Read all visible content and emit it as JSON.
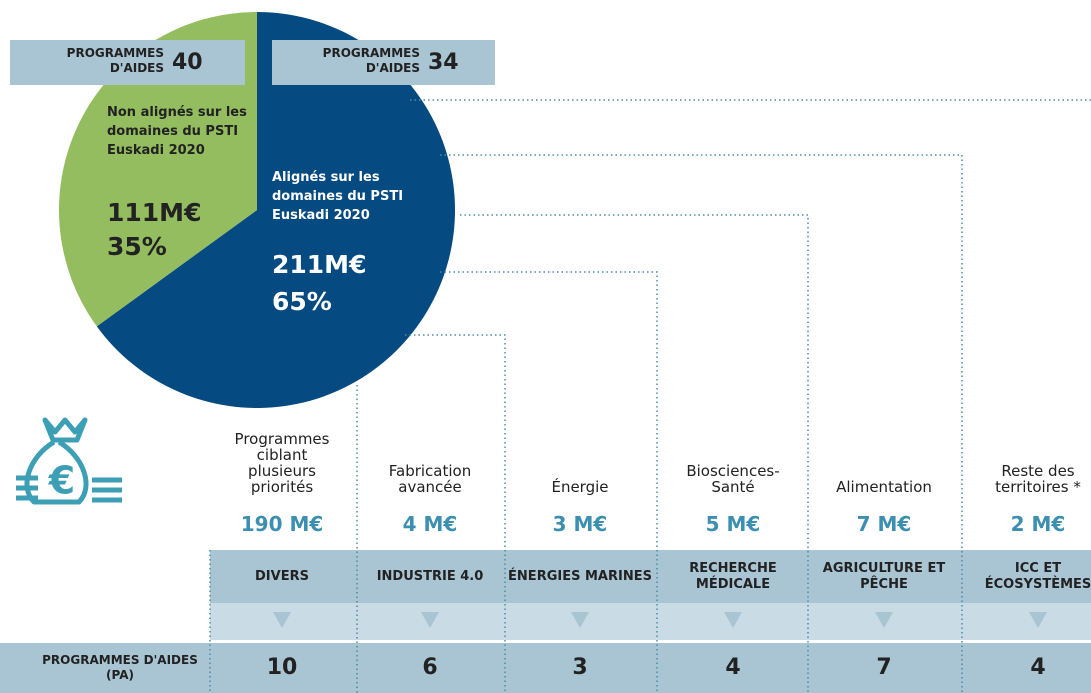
{
  "chart_data": {
    "type": "pie",
    "categories": [
      "Alignés sur les domaines du PSTI Euskadi 2020",
      "Non alignés sur les domaines du PSTI Euskadi 2020"
    ],
    "values": [
      65,
      35
    ],
    "value_labels": [
      "65%",
      "35%"
    ],
    "amounts": [
      "211M€",
      "111M€"
    ],
    "programmes": [
      34,
      40
    ],
    "colors": [
      "#054a80",
      "#93bd5f"
    ]
  },
  "programmes_label": "PROGRAMMES D'AIDES",
  "pa_label": "PROGRAMMES D'AIDES (PA)",
  "domains": [
    {
      "label": "Programmes ciblant plusieurs priorités",
      "amount": "190 M€",
      "sector": "DIVERS",
      "programmes": 10
    },
    {
      "label": "Fabrication avancée",
      "amount": "4 M€",
      "sector": "INDUSTRIE 4.0",
      "programmes": 6
    },
    {
      "label": "Énergie",
      "amount": "3 M€",
      "sector": "ÉNERGIES MARINES",
      "programmes": 3
    },
    {
      "label": "Biosciences-Santé",
      "amount": "5 M€",
      "sector": "RECHERCHE MÉDICALE",
      "programmes": 4
    },
    {
      "label": "Alimentation",
      "amount": "7 M€",
      "sector": "AGRICULTURE ET PÊCHE",
      "programmes": 7
    },
    {
      "label": "Reste des territoires *",
      "amount": "2 M€",
      "sector": "ICC ET ÉCOSYSTÈMES",
      "programmes": 4
    }
  ]
}
